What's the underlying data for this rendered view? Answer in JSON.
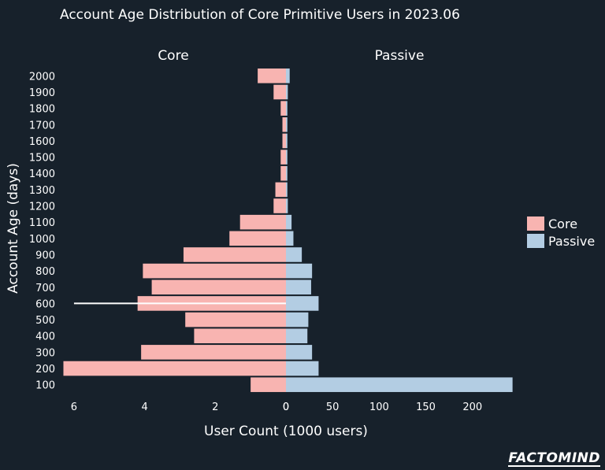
{
  "chart_data": {
    "type": "bar",
    "orientation": "horizontal-butterfly",
    "title": "Account Age Distribution of Core Primitive Users in 2023.06",
    "xlabel": "User Count (1000 users)",
    "ylabel": "Account Age (days)",
    "categories": [
      "100",
      "200",
      "300",
      "400",
      "500",
      "600",
      "700",
      "800",
      "900",
      "1000",
      "1100",
      "1200",
      "1300",
      "1400",
      "1500",
      "1600",
      "1700",
      "1800",
      "1900",
      "2000"
    ],
    "panels": [
      {
        "title": "Core",
        "xlim": [
          0,
          6.4
        ],
        "ticks": [
          6,
          4,
          2,
          0
        ]
      },
      {
        "title": "Passive",
        "xlim": [
          0,
          245
        ],
        "ticks": [
          0,
          50,
          100,
          150,
          200
        ]
      }
    ],
    "series": [
      {
        "name": "Core",
        "color": "#f8b4b1",
        "values": [
          1.0,
          6.3,
          4.1,
          2.6,
          2.85,
          4.2,
          3.8,
          4.05,
          2.9,
          1.6,
          1.3,
          0.35,
          0.3,
          0.15,
          0.15,
          0.1,
          0.1,
          0.15,
          0.35,
          0.8
        ]
      },
      {
        "name": "Passive",
        "color": "#b3cde3",
        "values": [
          243,
          35,
          28,
          23,
          24,
          35,
          27,
          28,
          17,
          8,
          6,
          2,
          1.5,
          1.5,
          1.5,
          1.5,
          1.5,
          1.5,
          2,
          4
        ]
      }
    ],
    "annotations": [
      {
        "type": "line",
        "y": "600",
        "x_from": 6.0,
        "x_to": 0,
        "color": "#ffffff"
      }
    ],
    "legend": {
      "position": "right",
      "entries": [
        "Core",
        "Passive"
      ]
    },
    "grid": false
  },
  "brand": {
    "logo": "FACTOMIND"
  }
}
